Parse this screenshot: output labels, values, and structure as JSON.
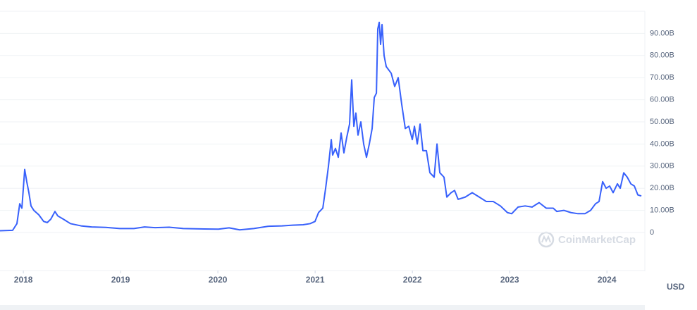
{
  "chart_data": {
    "type": "line",
    "series": [
      {
        "color": "#3861fb",
        "x": [
          2017.76,
          2017.89,
          2017.934,
          2017.963,
          2017.985,
          2018.014,
          2018.035,
          2018.057,
          2018.079,
          2018.108,
          2018.159,
          2018.209,
          2018.246,
          2018.282,
          2018.325,
          2018.354,
          2018.412,
          2018.485,
          2018.593,
          2018.702,
          2018.847,
          2018.992,
          2019.137,
          2019.246,
          2019.354,
          2019.499,
          2019.644,
          2019.861,
          2020.006,
          2020.115,
          2020.224,
          2020.369,
          2020.514,
          2020.659,
          2020.767,
          2020.876,
          2020.948,
          2020.999,
          2021.035,
          2021.079,
          2021.108,
          2021.137,
          2021.166,
          2021.18,
          2021.209,
          2021.238,
          2021.267,
          2021.296,
          2021.325,
          2021.354,
          2021.376,
          2021.398,
          2021.419,
          2021.441,
          2021.47,
          2021.499,
          2021.528,
          2021.557,
          2021.586,
          2021.608,
          2021.63,
          2021.644,
          2021.659,
          2021.673,
          2021.688,
          2021.709,
          2021.731,
          2021.782,
          2021.818,
          2021.854,
          2021.89,
          2021.927,
          2021.963,
          2021.999,
          2022.021,
          2022.05,
          2022.079,
          2022.108,
          2022.144,
          2022.18,
          2022.224,
          2022.253,
          2022.282,
          2022.325,
          2022.354,
          2022.398,
          2022.434,
          2022.47,
          2022.543,
          2022.615,
          2022.688,
          2022.76,
          2022.832,
          2022.905,
          2022.977,
          2023.021,
          2023.086,
          2023.159,
          2023.231,
          2023.303,
          2023.376,
          2023.448,
          2023.485,
          2023.557,
          2023.63,
          2023.702,
          2023.774,
          2023.832,
          2023.883,
          2023.919,
          2023.956,
          2023.992,
          2024.028,
          2024.064,
          2024.108,
          2024.137,
          2024.173,
          2024.209,
          2024.246,
          2024.282,
          2024.318,
          2024.354
        ],
        "values": [
          0.8,
          1.0,
          4,
          13,
          11,
          28.5,
          23,
          18,
          12,
          10,
          8,
          5,
          4.5,
          6,
          9.5,
          7.5,
          6,
          4,
          3,
          2.5,
          2.3,
          1.8,
          1.8,
          2.5,
          2.2,
          2.4,
          1.8,
          1.6,
          1.5,
          2.1,
          1.2,
          1.8,
          2.8,
          3.0,
          3.3,
          3.5,
          4.0,
          5,
          9,
          11,
          20,
          30,
          42,
          35,
          38,
          34,
          45,
          36,
          43,
          49,
          69,
          48,
          54,
          44,
          50,
          40,
          34,
          40,
          47,
          61,
          63,
          92,
          95,
          85,
          94,
          80,
          75,
          72,
          66,
          70,
          58,
          47,
          48,
          42,
          48,
          40,
          49,
          37,
          37,
          27,
          25,
          40,
          27,
          25,
          16,
          18,
          19,
          15,
          16,
          18,
          16,
          14,
          14,
          12,
          9,
          8.5,
          11.5,
          12,
          11.5,
          13.5,
          11,
          11,
          9.5,
          10,
          9,
          8.5,
          8.5,
          10,
          13,
          14,
          23,
          20,
          21,
          18,
          22,
          20,
          27,
          25,
          22,
          21,
          17,
          16.5
        ]
      }
    ],
    "xlim": [
      2017.76,
      2024.39
    ],
    "xticks": [
      2018,
      2019,
      2020,
      2021,
      2022,
      2023,
      2024
    ],
    "ylim": [
      0,
      100
    ],
    "yticks": [
      0,
      {
        "value": 10,
        "label": "10.00B"
      },
      {
        "value": 20,
        "label": "20.00B"
      },
      {
        "value": 30,
        "label": "30.00B"
      },
      {
        "value": 40,
        "label": "40.00B"
      },
      {
        "value": 50,
        "label": "50.00B"
      },
      {
        "value": 60,
        "label": "60.00B"
      },
      {
        "value": 70,
        "label": "70.00B"
      },
      {
        "value": 80,
        "label": "80.00B"
      },
      {
        "value": 90,
        "label": "90.00B"
      }
    ],
    "grid": true,
    "currency_label": "USD",
    "watermark": "CoinMarketCap"
  }
}
